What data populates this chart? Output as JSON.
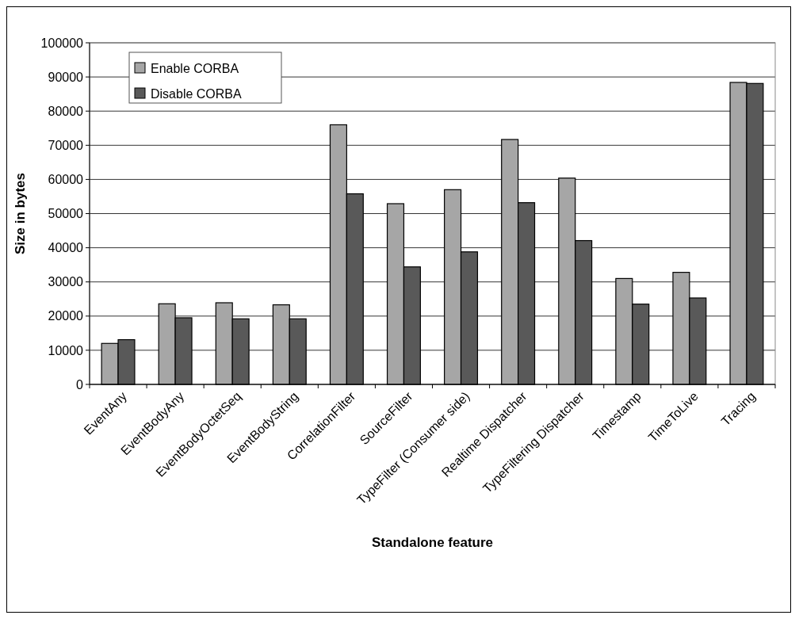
{
  "chart_data": {
    "type": "bar",
    "xlabel": "Standalone feature",
    "ylabel": "Size in bytes",
    "categories": [
      "EventAny",
      "EventBodyAny",
      "EventBodyOctetSeq",
      "EventBodyString",
      "CorrelationFilter",
      "SourceFilter",
      "TypeFilter (Consumer side)",
      "Realtime Dispatcher",
      "TypeFiltering Dispatcher",
      "Timestamp",
      "TimeToLive",
      "Tracing"
    ],
    "series": [
      {
        "name": "Enable CORBA",
        "color": "#a6a6a6",
        "values": [
          12000,
          23600,
          23900,
          23300,
          76000,
          52900,
          57000,
          71700,
          60400,
          31000,
          32800,
          88400
        ]
      },
      {
        "name": "Disable CORBA",
        "color": "#595959",
        "values": [
          13100,
          19500,
          19200,
          19200,
          55800,
          34400,
          38800,
          53200,
          42100,
          23500,
          25300,
          88100
        ]
      }
    ],
    "ylim": [
      0,
      100000
    ],
    "yticks": [
      0,
      10000,
      20000,
      30000,
      40000,
      50000,
      60000,
      70000,
      80000,
      90000,
      100000
    ],
    "grid": "y",
    "legend": "top left"
  }
}
